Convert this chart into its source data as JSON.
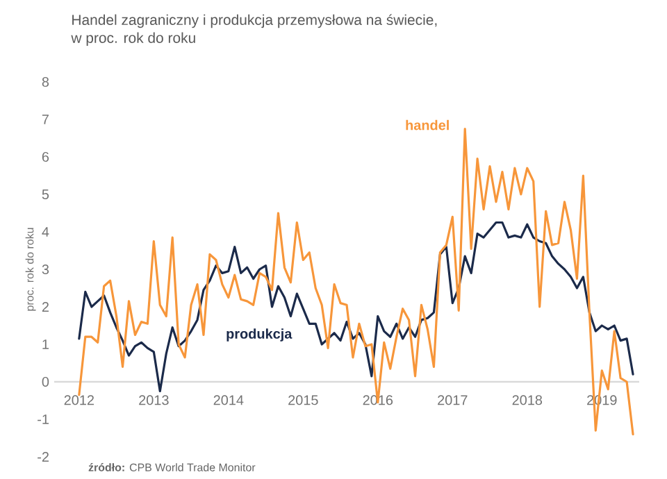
{
  "chart_data": {
    "type": "line",
    "title": "Handel zagraniczny i produkcja przemysłowa na świecie,\nw proc. rok do roku",
    "ylabel": "proc. rok do roku",
    "annotations": [
      "**źródło:** CPB World Trade Monitor"
    ],
    "x": [
      "2012-01",
      "2012-02",
      "2012-03",
      "2012-04",
      "2012-05",
      "2012-06",
      "2012-07",
      "2012-08",
      "2012-09",
      "2012-10",
      "2012-11",
      "2012-12",
      "2013-01",
      "2013-02",
      "2013-03",
      "2013-04",
      "2013-05",
      "2013-06",
      "2013-07",
      "2013-08",
      "2013-09",
      "2013-10",
      "2013-11",
      "2013-12",
      "2014-01",
      "2014-02",
      "2014-03",
      "2014-04",
      "2014-05",
      "2014-06",
      "2014-07",
      "2014-08",
      "2014-09",
      "2014-10",
      "2014-11",
      "2014-12",
      "2015-01",
      "2015-02",
      "2015-03",
      "2015-04",
      "2015-05",
      "2015-06",
      "2015-07",
      "2015-08",
      "2015-09",
      "2015-10",
      "2015-11",
      "2015-12",
      "2016-01",
      "2016-02",
      "2016-03",
      "2016-04",
      "2016-05",
      "2016-06",
      "2016-07",
      "2016-08",
      "2016-09",
      "2016-10",
      "2016-11",
      "2016-12",
      "2017-01",
      "2017-02",
      "2017-03",
      "2017-04",
      "2017-05",
      "2017-06",
      "2017-07",
      "2017-08",
      "2017-09",
      "2017-10",
      "2017-11",
      "2017-12",
      "2018-01",
      "2018-02",
      "2018-03",
      "2018-04",
      "2018-05",
      "2018-06",
      "2018-07",
      "2018-08",
      "2018-09",
      "2018-10",
      "2018-11",
      "2018-12",
      "2019-01",
      "2019-02",
      "2019-03",
      "2019-04",
      "2019-05",
      "2019-06"
    ],
    "series": [
      {
        "name": "produkcja",
        "color": "#1b2a4a",
        "values": [
          1.15,
          2.4,
          2.0,
          2.15,
          2.3,
          1.85,
          1.45,
          1.1,
          0.7,
          0.95,
          1.05,
          0.9,
          0.8,
          -0.25,
          0.75,
          1.45,
          0.95,
          1.1,
          1.35,
          1.65,
          2.45,
          2.7,
          3.1,
          2.9,
          2.95,
          3.6,
          2.9,
          3.05,
          2.75,
          3.0,
          3.1,
          2.0,
          2.55,
          2.25,
          1.75,
          2.35,
          1.95,
          1.55,
          1.55,
          1.0,
          1.15,
          1.3,
          1.1,
          1.6,
          1.15,
          1.3,
          1.0,
          0.15,
          1.75,
          1.35,
          1.2,
          1.55,
          1.15,
          1.45,
          1.2,
          1.65,
          1.7,
          1.85,
          3.4,
          3.6,
          2.1,
          2.5,
          3.35,
          2.9,
          3.95,
          3.85,
          4.05,
          4.25,
          4.25,
          3.85,
          3.9,
          3.85,
          4.2,
          3.85,
          3.75,
          3.7,
          3.35,
          3.15,
          3.0,
          2.8,
          2.5,
          2.8,
          1.85,
          1.35,
          1.5,
          1.4,
          1.5,
          1.1,
          1.15,
          0.2
        ]
      },
      {
        "name": "handel",
        "color": "#f7963a",
        "values": [
          -0.35,
          1.2,
          1.2,
          1.05,
          2.55,
          2.7,
          1.75,
          0.4,
          2.15,
          1.25,
          1.6,
          1.55,
          3.75,
          2.05,
          1.75,
          3.85,
          1.0,
          0.65,
          2.05,
          2.6,
          1.25,
          3.4,
          3.25,
          2.6,
          2.25,
          2.85,
          2.2,
          2.15,
          2.05,
          2.9,
          2.8,
          2.45,
          4.5,
          3.05,
          2.65,
          4.25,
          3.25,
          3.45,
          2.5,
          2.05,
          0.9,
          2.6,
          2.1,
          2.05,
          0.65,
          1.55,
          0.95,
          1.0,
          -0.55,
          1.05,
          0.35,
          1.2,
          1.95,
          1.65,
          0.15,
          2.05,
          1.4,
          0.4,
          3.45,
          3.65,
          4.4,
          1.9,
          6.75,
          3.55,
          5.95,
          4.6,
          5.75,
          4.8,
          5.6,
          4.6,
          5.7,
          5.0,
          5.7,
          5.35,
          2.0,
          4.55,
          3.65,
          3.7,
          4.8,
          4.05,
          2.75,
          5.5,
          1.85,
          -1.3,
          0.3,
          -0.2,
          1.35,
          0.1,
          0.0,
          -1.4
        ]
      }
    ],
    "xlim": [
      "2011-09",
      "2019-07"
    ],
    "xticks": [
      {
        "value": "2012-01",
        "label": "2012"
      },
      {
        "value": "2013-01",
        "label": "2013"
      },
      {
        "value": "2014-01",
        "label": "2014"
      },
      {
        "value": "2015-01",
        "label": "2015"
      },
      {
        "value": "2016-01",
        "label": "2016"
      },
      {
        "value": "2017-01",
        "label": "2017"
      },
      {
        "value": "2018-01",
        "label": "2018"
      },
      {
        "value": "2019-01",
        "label": "2019"
      }
    ],
    "ylim": [
      -2,
      8
    ],
    "yticks": [
      -2,
      -1,
      0,
      1,
      2,
      3,
      4,
      5,
      6,
      7,
      8
    ],
    "grid": false,
    "legend": false,
    "marker": "none",
    "line_style": "solid"
  }
}
